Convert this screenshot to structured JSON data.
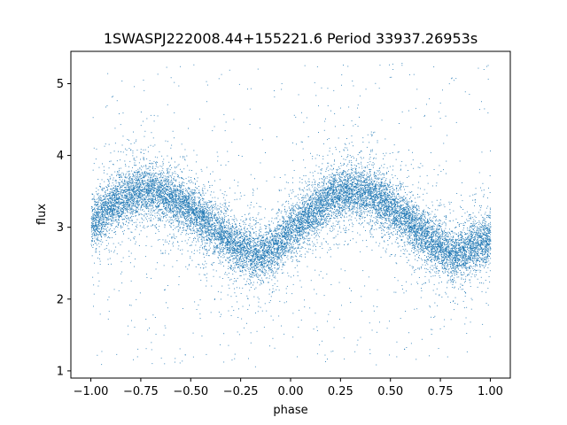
{
  "chart_data": {
    "type": "scatter",
    "title": "1SWASPJ222008.44+155221.6 Period 33937.26953s",
    "xlabel": "phase",
    "ylabel": "flux",
    "xlim": [
      -1.1,
      1.1
    ],
    "ylim": [
      0.9,
      5.45
    ],
    "xticks": [
      -1.0,
      -0.75,
      -0.5,
      -0.25,
      0.0,
      0.25,
      0.5,
      0.75,
      1.0
    ],
    "xtick_labels": [
      "−1.00",
      "−0.75",
      "−0.50",
      "−0.25",
      "0.00",
      "0.25",
      "0.50",
      "0.75",
      "1.00"
    ],
    "yticks": [
      1,
      2,
      3,
      4,
      5
    ],
    "ytick_labels": [
      "1",
      "2",
      "3",
      "4",
      "5"
    ],
    "grid": false,
    "marker_color": "#1f77b4",
    "series": [
      {
        "x": [
          -1.0,
          -0.9,
          -0.8,
          -0.75,
          -0.7,
          -0.6,
          -0.5,
          -0.4,
          -0.3,
          -0.25,
          -0.2,
          -0.15,
          -0.1,
          -0.05,
          0.0,
          0.1,
          0.2,
          0.25,
          0.3,
          0.35,
          0.4,
          0.5,
          0.6,
          0.7,
          0.75,
          0.8,
          0.85,
          0.9,
          0.95,
          1.0
        ],
        "y": [
          3.05,
          3.3,
          3.48,
          3.52,
          3.5,
          3.42,
          3.25,
          3.0,
          2.8,
          2.72,
          2.65,
          2.62,
          2.68,
          2.8,
          2.95,
          3.2,
          3.42,
          3.48,
          3.5,
          3.5,
          3.45,
          3.3,
          3.05,
          2.82,
          2.72,
          2.66,
          2.66,
          2.72,
          2.78,
          2.85
        ]
      }
    ]
  }
}
